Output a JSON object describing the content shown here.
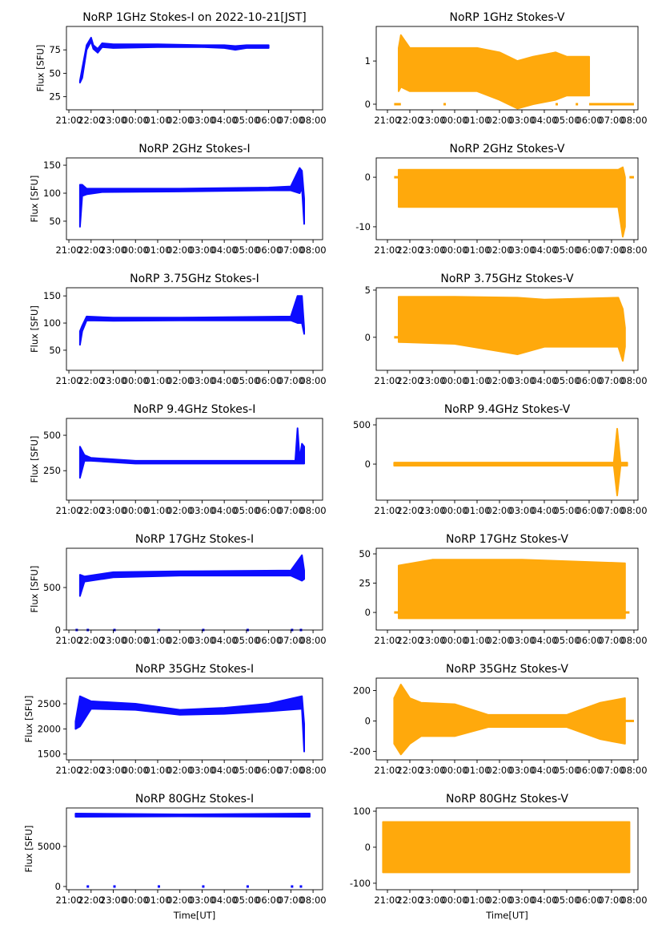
{
  "chart_data": {
    "type": "scatter",
    "x_unit": "hours after 21:00 UT",
    "xtick_labels": [
      "21:00",
      "22:00",
      "23:00",
      "00:00",
      "01:00",
      "02:00",
      "03:00",
      "04:00",
      "05:00",
      "06:00",
      "07:00",
      "08:00"
    ],
    "xlabel": "Time[UT]",
    "ylabel": "Flux [SFU]",
    "colors": {
      "stokes_i": "#0000ff",
      "stokes_v": "#ffa500"
    },
    "panels": [
      {
        "title": "NoRP 1GHz Stokes-I on 2022-10-21[JST]",
        "col": 0,
        "ylim": [
          11,
          100
        ],
        "xlim": [
          -0.11,
          11.43
        ],
        "yticks": [
          25,
          50,
          75
        ],
        "ylabel": true,
        "band": [
          [
            0.5,
            40,
            42
          ],
          [
            0.6,
            45,
            55
          ],
          [
            0.8,
            75,
            80
          ],
          [
            1.0,
            84,
            88
          ],
          [
            1.1,
            76,
            80
          ],
          [
            1.3,
            72,
            76
          ],
          [
            1.5,
            78,
            82
          ],
          [
            2,
            77,
            81
          ],
          [
            4,
            78,
            81
          ],
          [
            6,
            78,
            80
          ],
          [
            7,
            77,
            80
          ],
          [
            7.5,
            75,
            79
          ],
          [
            8,
            77,
            80
          ],
          [
            9,
            77,
            80
          ]
        ],
        "zeros": []
      },
      {
        "title": "NoRP 1GHz Stokes-V",
        "col": 1,
        "ylim": [
          -0.13,
          1.8
        ],
        "xlim": [
          -0.5,
          11.18
        ],
        "yticks": [
          0,
          1
        ],
        "band": [
          [
            0.5,
            0.3,
            1.3
          ],
          [
            0.6,
            0.4,
            1.6
          ],
          [
            1,
            0.3,
            1.3
          ],
          [
            3,
            0.3,
            1.3
          ],
          [
            4,
            0.3,
            1.3
          ],
          [
            5,
            0.1,
            1.2
          ],
          [
            5.8,
            -0.1,
            1.0
          ],
          [
            6.5,
            0.0,
            1.1
          ],
          [
            7.5,
            0.1,
            1.2
          ],
          [
            8,
            0.2,
            1.1
          ],
          [
            9,
            0.2,
            1.1
          ]
        ],
        "zeros": [
          [
            0.3,
            0.6
          ],
          [
            2.5,
            2.6
          ],
          [
            5.5,
            5.6
          ],
          [
            7.5,
            7.6
          ],
          [
            8.4,
            8.5
          ],
          [
            9,
            11
          ]
        ]
      },
      {
        "title": "NoRP 2GHz Stokes-I",
        "col": 0,
        "ylim": [
          17,
          163
        ],
        "xlim": [
          -0.11,
          11.43
        ],
        "yticks": [
          50,
          100,
          150
        ],
        "ylabel": true,
        "band": [
          [
            0.5,
            40,
            115
          ],
          [
            0.6,
            95,
            115
          ],
          [
            0.8,
            98,
            108
          ],
          [
            1.5,
            102,
            108
          ],
          [
            5,
            103,
            108
          ],
          [
            9,
            105,
            110
          ],
          [
            10,
            105,
            112
          ],
          [
            10.4,
            100,
            145
          ],
          [
            10.5,
            110,
            140
          ],
          [
            10.6,
            45,
            90
          ]
        ],
        "zeros": []
      },
      {
        "title": "NoRP 2GHz Stokes-V",
        "col": 1,
        "ylim": [
          -12.6,
          3.9
        ],
        "xlim": [
          -0.5,
          11.18
        ],
        "yticks": [
          -10,
          0
        ],
        "band": [
          [
            0.5,
            -6,
            1.5
          ],
          [
            5,
            -6,
            1.5
          ],
          [
            10.3,
            -6,
            1.5
          ],
          [
            10.5,
            -12,
            2
          ],
          [
            10.6,
            -10,
            0
          ]
        ],
        "zeros": [
          [
            0.3,
            0.5
          ],
          [
            10.8,
            11
          ]
        ]
      },
      {
        "title": "NoRP 3.75GHz Stokes-I",
        "col": 0,
        "ylim": [
          13,
          165
        ],
        "xlim": [
          -0.11,
          11.43
        ],
        "yticks": [
          50,
          100,
          150
        ],
        "ylabel": true,
        "band": [
          [
            0.5,
            60,
            85
          ],
          [
            0.6,
            85,
            95
          ],
          [
            0.8,
            105,
            112
          ],
          [
            2,
            104,
            110
          ],
          [
            5,
            105,
            110
          ],
          [
            10,
            105,
            112
          ],
          [
            10.3,
            100,
            150
          ],
          [
            10.5,
            100,
            150
          ],
          [
            10.6,
            80,
            90
          ]
        ],
        "zeros": []
      },
      {
        "title": "NoRP 3.75GHz Stokes-V",
        "col": 1,
        "ylim": [
          -3.5,
          5.25
        ],
        "xlim": [
          -0.5,
          11.18
        ],
        "yticks": [
          0,
          5
        ],
        "band": [
          [
            0.5,
            -0.5,
            4.3
          ],
          [
            3,
            -0.7,
            4.3
          ],
          [
            5.8,
            -1.8,
            4.2
          ],
          [
            7,
            -1,
            4
          ],
          [
            10.3,
            -1,
            4.2
          ],
          [
            10.5,
            -2.5,
            3
          ],
          [
            10.6,
            -1,
            1
          ]
        ],
        "zeros": [
          [
            0.3,
            0.5
          ]
        ]
      },
      {
        "title": "NoRP 9.4GHz Stokes-I",
        "col": 0,
        "ylim": [
          42,
          619
        ],
        "xlim": [
          -0.11,
          11.43
        ],
        "yticks": [
          250,
          500
        ],
        "ylabel": true,
        "band": [
          [
            0.5,
            200,
            420
          ],
          [
            0.7,
            320,
            360
          ],
          [
            1,
            320,
            340
          ],
          [
            3,
            300,
            320
          ],
          [
            10.2,
            300,
            320
          ],
          [
            10.3,
            300,
            550
          ],
          [
            10.4,
            300,
            330
          ],
          [
            10.5,
            300,
            440
          ],
          [
            10.6,
            300,
            420
          ]
        ],
        "zeros": []
      },
      {
        "title": "NoRP 9.4GHz Stokes-V",
        "col": 1,
        "ylim": [
          -459,
          582
        ],
        "xlim": [
          -0.5,
          11.18
        ],
        "yticks": [
          0,
          500
        ],
        "band": [
          [
            0.3,
            -20,
            20
          ],
          [
            10.1,
            -20,
            20
          ],
          [
            10.25,
            -400,
            450
          ],
          [
            10.4,
            -20,
            20
          ],
          [
            10.7,
            -20,
            20
          ]
        ],
        "zeros": []
      },
      {
        "title": "NoRP 17GHz Stokes-I",
        "col": 0,
        "ylim": [
          0,
          962
        ],
        "xlim": [
          -0.11,
          11.43
        ],
        "yticks": [
          0,
          500
        ],
        "ylabel": true,
        "band": [
          [
            0.5,
            400,
            650
          ],
          [
            0.7,
            570,
            630
          ],
          [
            2,
            620,
            680
          ],
          [
            5,
            640,
            690
          ],
          [
            10,
            640,
            700
          ],
          [
            10.5,
            580,
            880
          ],
          [
            10.6,
            600,
            700
          ]
        ],
        "zeros": [
          [
            0.3,
            0.4
          ],
          [
            0.8,
            0.9
          ],
          [
            2,
            2.1
          ],
          [
            4,
            4.1
          ],
          [
            6,
            6.1
          ],
          [
            8,
            8.1
          ],
          [
            10,
            10.1
          ],
          [
            10.4,
            10.5
          ]
        ]
      },
      {
        "title": "NoRP 17GHz Stokes-V",
        "col": 1,
        "ylim": [
          -15,
          54.8
        ],
        "xlim": [
          -0.5,
          11.18
        ],
        "yticks": [
          0,
          25,
          50
        ],
        "band": [
          [
            0.5,
            -5,
            40
          ],
          [
            2,
            -5,
            45
          ],
          [
            6,
            -5,
            45
          ],
          [
            10.6,
            -5,
            42
          ]
        ],
        "zeros": [
          [
            0.3,
            0.5
          ],
          [
            10.6,
            10.8
          ]
        ]
      },
      {
        "title": "NoRP 35GHz Stokes-I",
        "col": 0,
        "ylim": [
          1384,
          3011
        ],
        "xlim": [
          -0.11,
          11.43
        ],
        "yticks": [
          1500,
          2000,
          2500
        ],
        "ylabel": true,
        "band": [
          [
            0.3,
            2000,
            2150
          ],
          [
            0.5,
            2050,
            2650
          ],
          [
            1,
            2400,
            2550
          ],
          [
            3,
            2380,
            2500
          ],
          [
            5,
            2280,
            2380
          ],
          [
            7,
            2300,
            2420
          ],
          [
            9,
            2350,
            2500
          ],
          [
            10.5,
            2400,
            2650
          ],
          [
            10.6,
            1550,
            2100
          ]
        ],
        "zeros": []
      },
      {
        "title": "NoRP 35GHz Stokes-V",
        "col": 1,
        "ylim": [
          -256,
          282
        ],
        "xlim": [
          -0.5,
          11.18
        ],
        "yticks": [
          -200,
          0,
          200
        ],
        "band": [
          [
            0.3,
            -150,
            150
          ],
          [
            0.6,
            -220,
            240
          ],
          [
            1,
            -150,
            150
          ],
          [
            1.5,
            -100,
            120
          ],
          [
            3,
            -100,
            110
          ],
          [
            4.5,
            -40,
            40
          ],
          [
            8,
            -40,
            40
          ],
          [
            9.5,
            -120,
            120
          ],
          [
            10.6,
            -150,
            150
          ]
        ],
        "zeros": [
          [
            10.6,
            11
          ]
        ]
      },
      {
        "title": "NoRP 80GHz Stokes-I",
        "col": 0,
        "ylim": [
          -400,
          9800
        ],
        "xlim": [
          -0.11,
          11.43
        ],
        "yticks": [
          0,
          5000
        ],
        "ylabel": true,
        "xlabel": true,
        "band": [
          [
            0.3,
            8700,
            9100
          ],
          [
            5,
            8750,
            9000
          ],
          [
            10.85,
            8700,
            9100
          ]
        ],
        "zeros": [
          [
            0.8,
            0.9
          ],
          [
            2,
            2.1
          ],
          [
            4,
            4.1
          ],
          [
            6,
            6.1
          ],
          [
            8,
            8.1
          ],
          [
            10,
            10.1
          ],
          [
            10.4,
            10.5
          ]
        ]
      },
      {
        "title": "NoRP 80GHz Stokes-V",
        "col": 1,
        "ylim": [
          -118,
          109
        ],
        "xlim": [
          -0.5,
          11.18
        ],
        "yticks": [
          -100,
          0,
          100
        ],
        "xlabel": true,
        "band": [
          [
            -0.2,
            -70,
            70
          ],
          [
            5,
            -70,
            70
          ],
          [
            10.8,
            -70,
            70
          ]
        ],
        "zeros": []
      }
    ]
  }
}
